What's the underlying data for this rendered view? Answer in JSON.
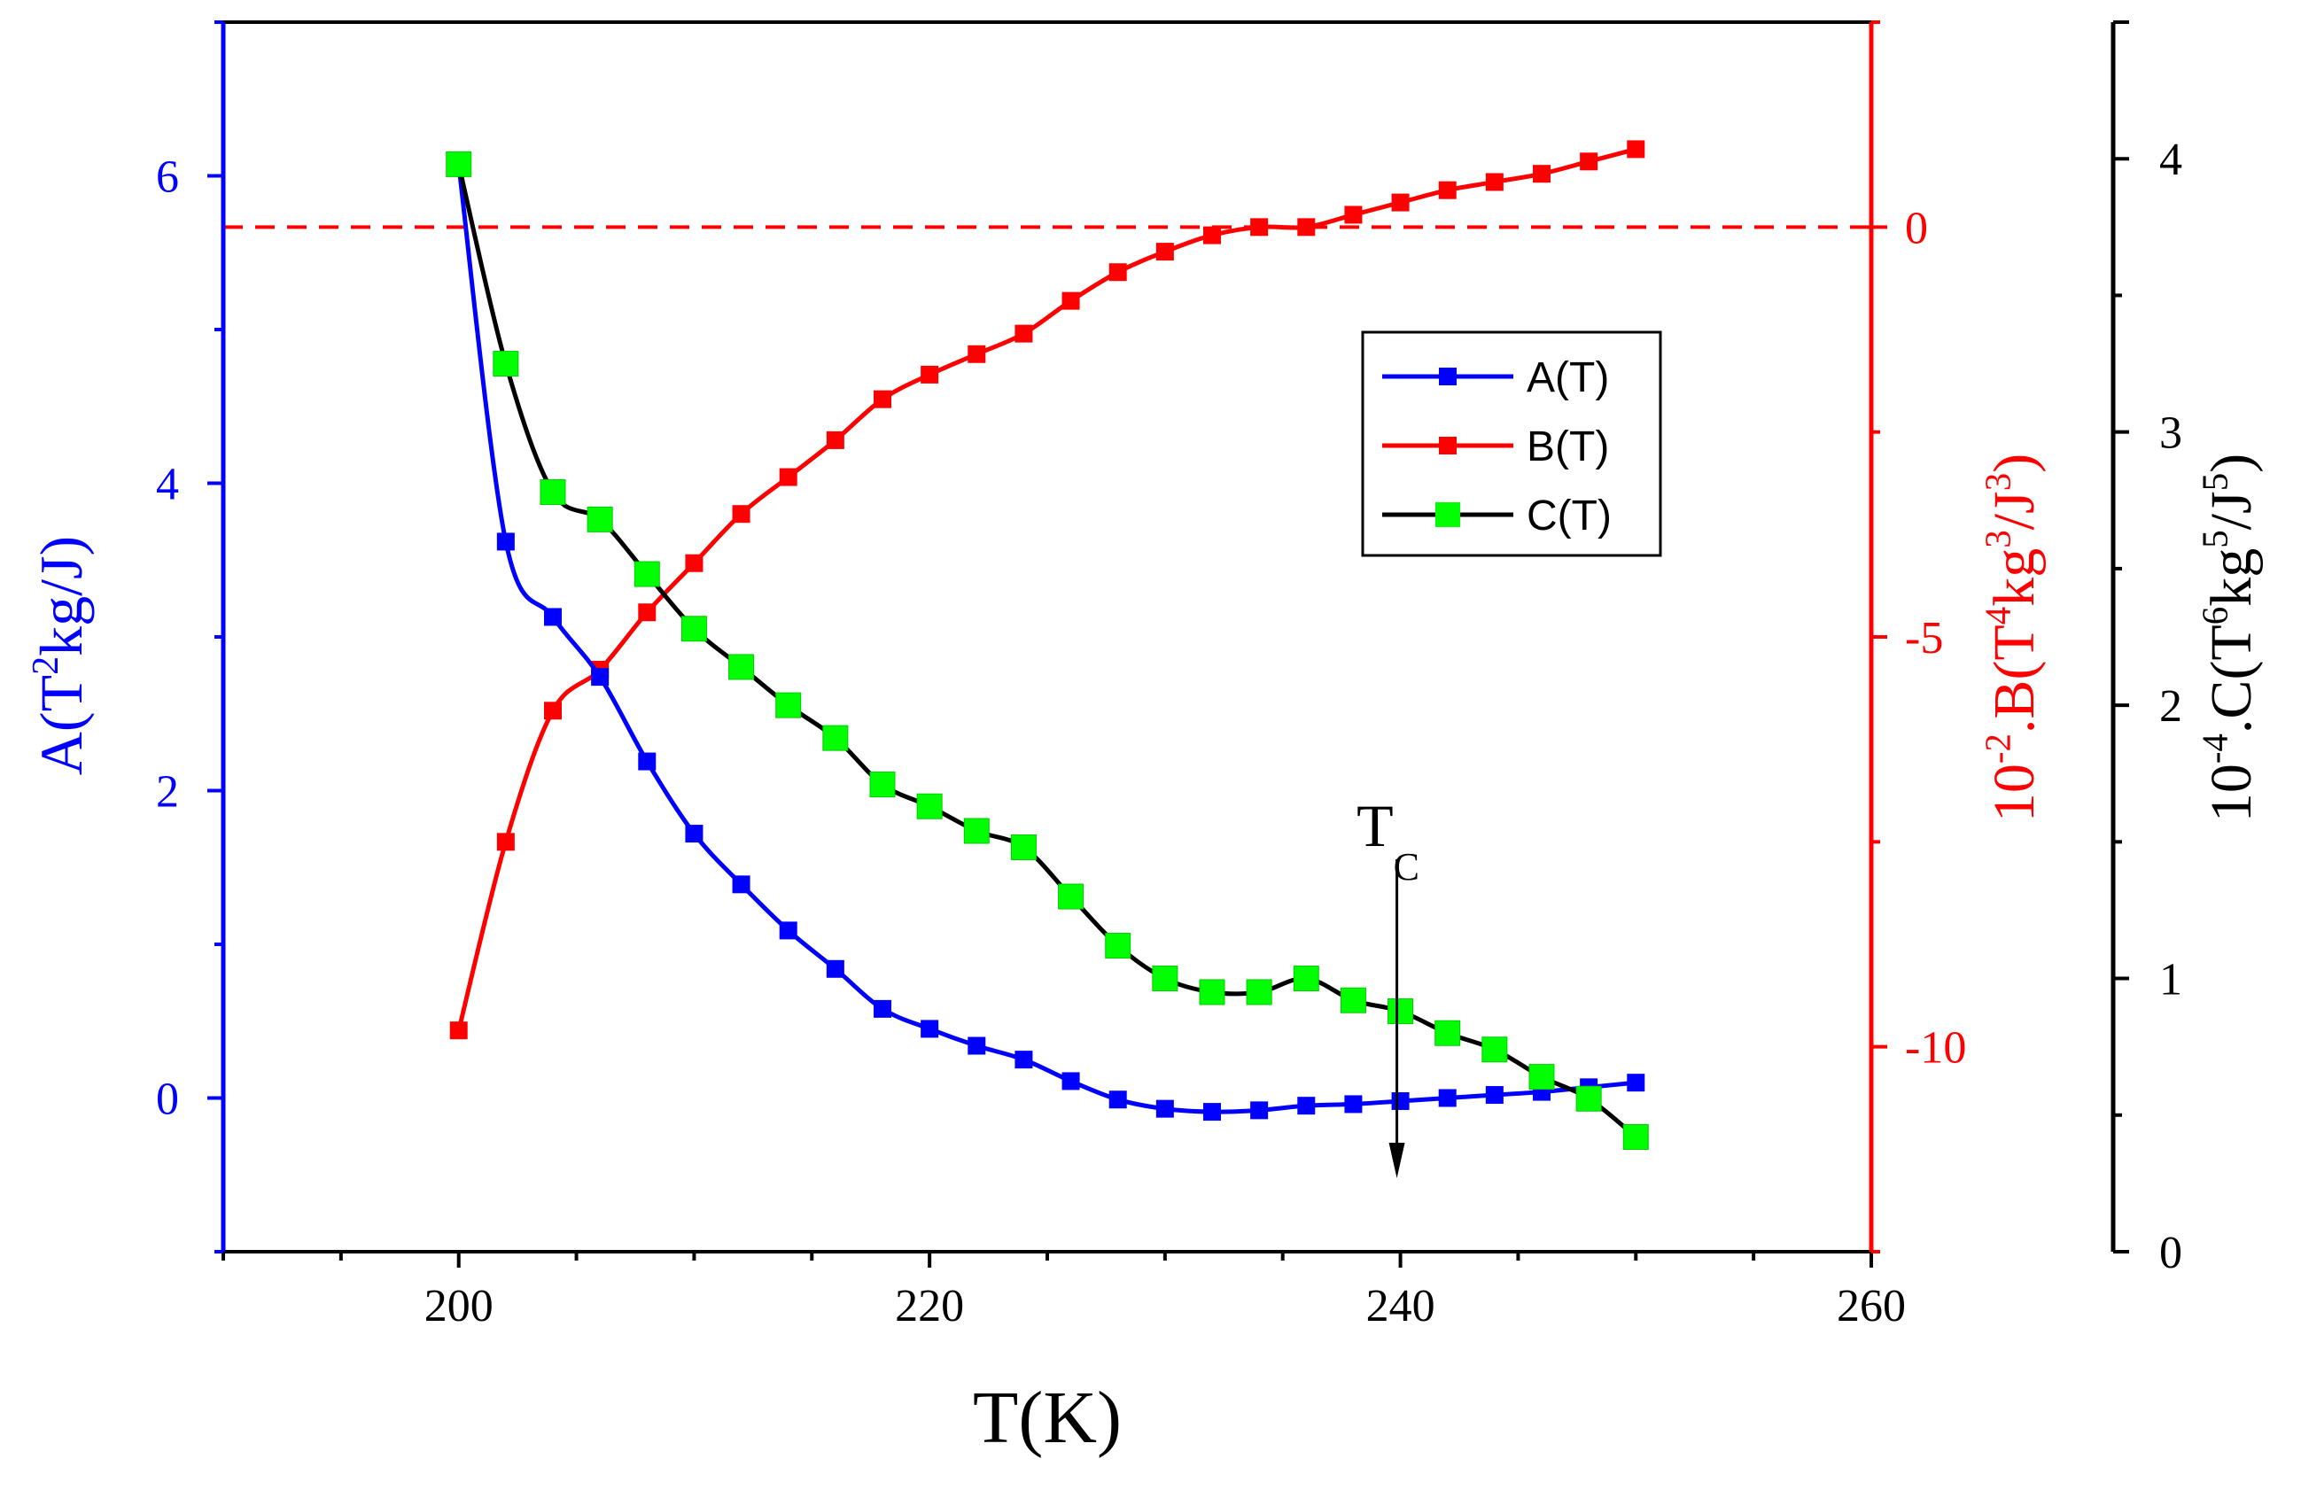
{
  "chart_data": {
    "type": "line",
    "x_axis": {
      "title": "T(K)",
      "range": [
        190,
        260
      ],
      "ticks": [
        200,
        220,
        240,
        260
      ],
      "tick_labels": [
        "200",
        "220",
        "240",
        "260"
      ]
    },
    "y_axes": {
      "A": {
        "title": "A(T²kg/J)",
        "title_parts": [
          "A(T",
          "2",
          "kg/J)"
        ],
        "range": [
          -1,
          7
        ],
        "ticks": [
          0,
          2,
          4,
          6
        ],
        "tick_labels": [
          "0",
          "2",
          "4",
          "6"
        ],
        "color": "#0000ff",
        "side": "left"
      },
      "B": {
        "title": "10⁻².B(T⁴kg³/J³)",
        "title_parts": [
          "10",
          "-2",
          ".B(T",
          "4",
          "kg",
          "3",
          "/J",
          "3",
          ")"
        ],
        "range": [
          -12.5,
          2.5
        ],
        "ticks": [
          -10,
          -5,
          0
        ],
        "tick_labels": [
          "-10",
          "-5",
          "0"
        ],
        "color": "#ff0000",
        "side": "right"
      },
      "C": {
        "title": "10⁻⁴.C(T⁶kg⁵/J⁵)",
        "title_parts": [
          "10",
          "-4",
          ".C(T",
          "6",
          "kg",
          "5",
          "/J",
          "5",
          ")"
        ],
        "range": [
          0,
          4.5
        ],
        "ticks": [
          0,
          1,
          2,
          3,
          4
        ],
        "tick_labels": [
          "0",
          "1",
          "2",
          "3",
          "4"
        ],
        "color": "#000000",
        "side": "right-offset"
      }
    },
    "x": [
      200,
      202,
      204,
      206,
      208,
      210,
      212,
      214,
      216,
      218,
      220,
      222,
      224,
      226,
      228,
      230,
      232,
      234,
      236,
      238,
      240,
      242,
      244,
      246,
      248,
      250
    ],
    "series": [
      {
        "name": "A(T)",
        "axis": "A",
        "color": "#0000ff",
        "line_color": "#0000ff",
        "marker": "square-small",
        "values": [
          6.07,
          3.62,
          3.13,
          2.74,
          2.19,
          1.72,
          1.39,
          1.09,
          0.84,
          0.58,
          0.45,
          0.34,
          0.25,
          0.11,
          -0.01,
          -0.07,
          -0.09,
          -0.08,
          -0.05,
          -0.04,
          -0.02,
          0.0,
          0.02,
          0.04,
          0.07,
          0.1
        ]
      },
      {
        "name": "B(T)",
        "axis": "B",
        "color": "#ff0000",
        "line_color": "#ff0000",
        "marker": "square-small",
        "values": [
          -9.8,
          -7.5,
          -5.9,
          -5.4,
          -4.7,
          -4.1,
          -3.5,
          -3.05,
          -2.6,
          -2.1,
          -1.8,
          -1.55,
          -1.3,
          -0.9,
          -0.55,
          -0.3,
          -0.1,
          0.0,
          0.0,
          0.15,
          0.3,
          0.45,
          0.55,
          0.65,
          0.8,
          0.95
        ]
      },
      {
        "name": "C(T)",
        "axis": "C",
        "color": "#00ff00",
        "line_color": "#000000",
        "marker": "square-large",
        "values": [
          3.98,
          3.25,
          2.78,
          2.68,
          2.48,
          2.28,
          2.14,
          2.0,
          1.88,
          1.71,
          1.63,
          1.54,
          1.48,
          1.3,
          1.12,
          1.0,
          0.95,
          0.95,
          1.0,
          0.92,
          0.88,
          0.8,
          0.74,
          0.64,
          0.56,
          0.42
        ]
      }
    ],
    "reference_line": {
      "axis": "B",
      "value": 0,
      "style": "dashed",
      "color": "#ff0000"
    },
    "annotation": {
      "text": "T",
      "subscript": "C",
      "arrow_x": 240,
      "direction": "down"
    },
    "legend": {
      "placement": "upper-right-inside",
      "entries": [
        "A(T)",
        "B(T)",
        "C(T)"
      ]
    },
    "grid": false
  }
}
